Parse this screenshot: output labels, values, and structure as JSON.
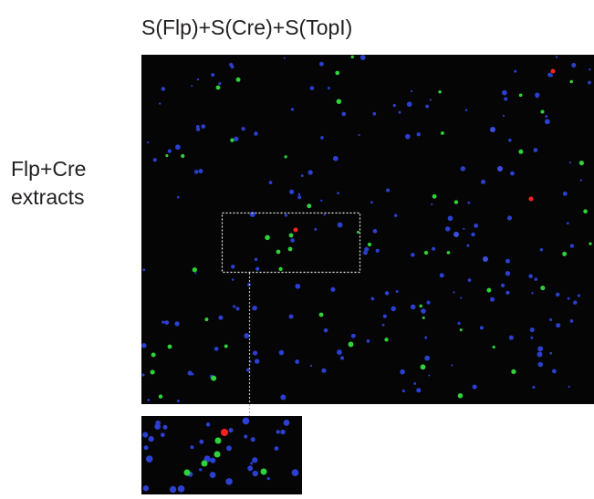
{
  "title": "S(Flp)+S(Cre)+S(TopI)",
  "row_label": {
    "lines": [
      "Flp+Cre",
      "extracts"
    ]
  }
}
